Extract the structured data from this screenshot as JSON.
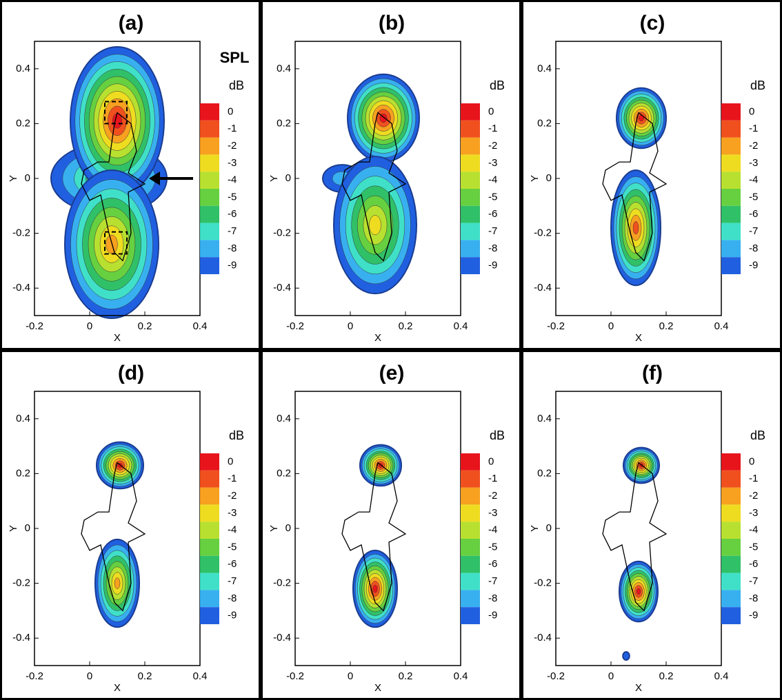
{
  "chart_data": [
    {
      "type": "contour",
      "title": "(a)",
      "annotation": "SPL",
      "colorbar_title": "dB",
      "xlabel": "X",
      "ylabel": "Y",
      "xlim": [
        -0.2,
        0.4
      ],
      "ylim": [
        -0.5,
        0.5
      ],
      "xticks": [
        -0.2,
        0,
        0.2,
        0.4
      ],
      "yticks": [
        -0.4,
        -0.2,
        0,
        0.2,
        0.4
      ],
      "levels": [
        0,
        -1,
        -2,
        -3,
        -4,
        -5,
        -6,
        -7,
        -8,
        -9
      ],
      "colors": [
        "#e8141c",
        "#f0501e",
        "#f8a020",
        "#eedc20",
        "#b8e030",
        "#66d040",
        "#30c068",
        "#40e0c8",
        "#38b0f0",
        "#2060e0"
      ]
    },
    {
      "type": "contour",
      "title": "(b)",
      "colorbar_title": "dB",
      "xlabel": "X",
      "ylabel": "Y",
      "xlim": [
        -0.2,
        0.4
      ],
      "ylim": [
        -0.5,
        0.5
      ],
      "xticks": [
        -0.2,
        0,
        0.2,
        0.4
      ],
      "yticks": [
        -0.4,
        -0.2,
        0,
        0.2,
        0.4
      ],
      "levels": [
        0,
        -1,
        -2,
        -3,
        -4,
        -5,
        -6,
        -7,
        -8,
        -9
      ],
      "colors": [
        "#e8141c",
        "#f0501e",
        "#f8a020",
        "#eedc20",
        "#b8e030",
        "#66d040",
        "#30c068",
        "#40e0c8",
        "#38b0f0",
        "#2060e0"
      ]
    },
    {
      "type": "contour",
      "title": "(c)",
      "colorbar_title": "dB",
      "xlabel": "X",
      "ylabel": "Y",
      "xlim": [
        -0.2,
        0.4
      ],
      "ylim": [
        -0.5,
        0.5
      ],
      "xticks": [
        -0.2,
        0,
        0.2,
        0.4
      ],
      "yticks": [
        -0.4,
        -0.2,
        0,
        0.2,
        0.4
      ],
      "levels": [
        0,
        -1,
        -2,
        -3,
        -4,
        -5,
        -6,
        -7,
        -8,
        -9
      ],
      "colors": [
        "#e8141c",
        "#f0501e",
        "#f8a020",
        "#eedc20",
        "#b8e030",
        "#66d040",
        "#30c068",
        "#40e0c8",
        "#38b0f0",
        "#2060e0"
      ]
    },
    {
      "type": "contour",
      "title": "(d)",
      "colorbar_title": "dB",
      "xlabel": "X",
      "ylabel": "Y",
      "xlim": [
        -0.2,
        0.4
      ],
      "ylim": [
        -0.5,
        0.5
      ],
      "xticks": [
        -0.2,
        0,
        0.2,
        0.4
      ],
      "yticks": [
        -0.4,
        -0.2,
        0,
        0.2,
        0.4
      ],
      "levels": [
        0,
        -1,
        -2,
        -3,
        -4,
        -5,
        -6,
        -7,
        -8,
        -9
      ],
      "colors": [
        "#e8141c",
        "#f0501e",
        "#f8a020",
        "#eedc20",
        "#b8e030",
        "#66d040",
        "#30c068",
        "#40e0c8",
        "#38b0f0",
        "#2060e0"
      ]
    },
    {
      "type": "contour",
      "title": "(e)",
      "colorbar_title": "dB",
      "xlabel": "X",
      "ylabel": "Y",
      "xlim": [
        -0.2,
        0.4
      ],
      "ylim": [
        -0.5,
        0.5
      ],
      "xticks": [
        -0.2,
        0,
        0.2,
        0.4
      ],
      "yticks": [
        -0.4,
        -0.2,
        0,
        0.2,
        0.4
      ],
      "levels": [
        0,
        -1,
        -2,
        -3,
        -4,
        -5,
        -6,
        -7,
        -8,
        -9
      ],
      "colors": [
        "#e8141c",
        "#f0501e",
        "#f8a020",
        "#eedc20",
        "#b8e030",
        "#66d040",
        "#30c068",
        "#40e0c8",
        "#38b0f0",
        "#2060e0"
      ]
    },
    {
      "type": "contour",
      "title": "(f)",
      "colorbar_title": "dB",
      "xlabel": "X",
      "ylabel": "Y",
      "xlim": [
        -0.2,
        0.4
      ],
      "ylim": [
        -0.5,
        0.5
      ],
      "xticks": [
        -0.2,
        0,
        0.2,
        0.4
      ],
      "yticks": [
        -0.4,
        -0.2,
        0,
        0.2,
        0.4
      ],
      "levels": [
        0,
        -1,
        -2,
        -3,
        -4,
        -5,
        -6,
        -7,
        -8,
        -9
      ],
      "colors": [
        "#e8141c",
        "#f0501e",
        "#f8a020",
        "#eedc20",
        "#b8e030",
        "#66d040",
        "#30c068",
        "#40e0c8",
        "#38b0f0",
        "#2060e0"
      ]
    }
  ]
}
